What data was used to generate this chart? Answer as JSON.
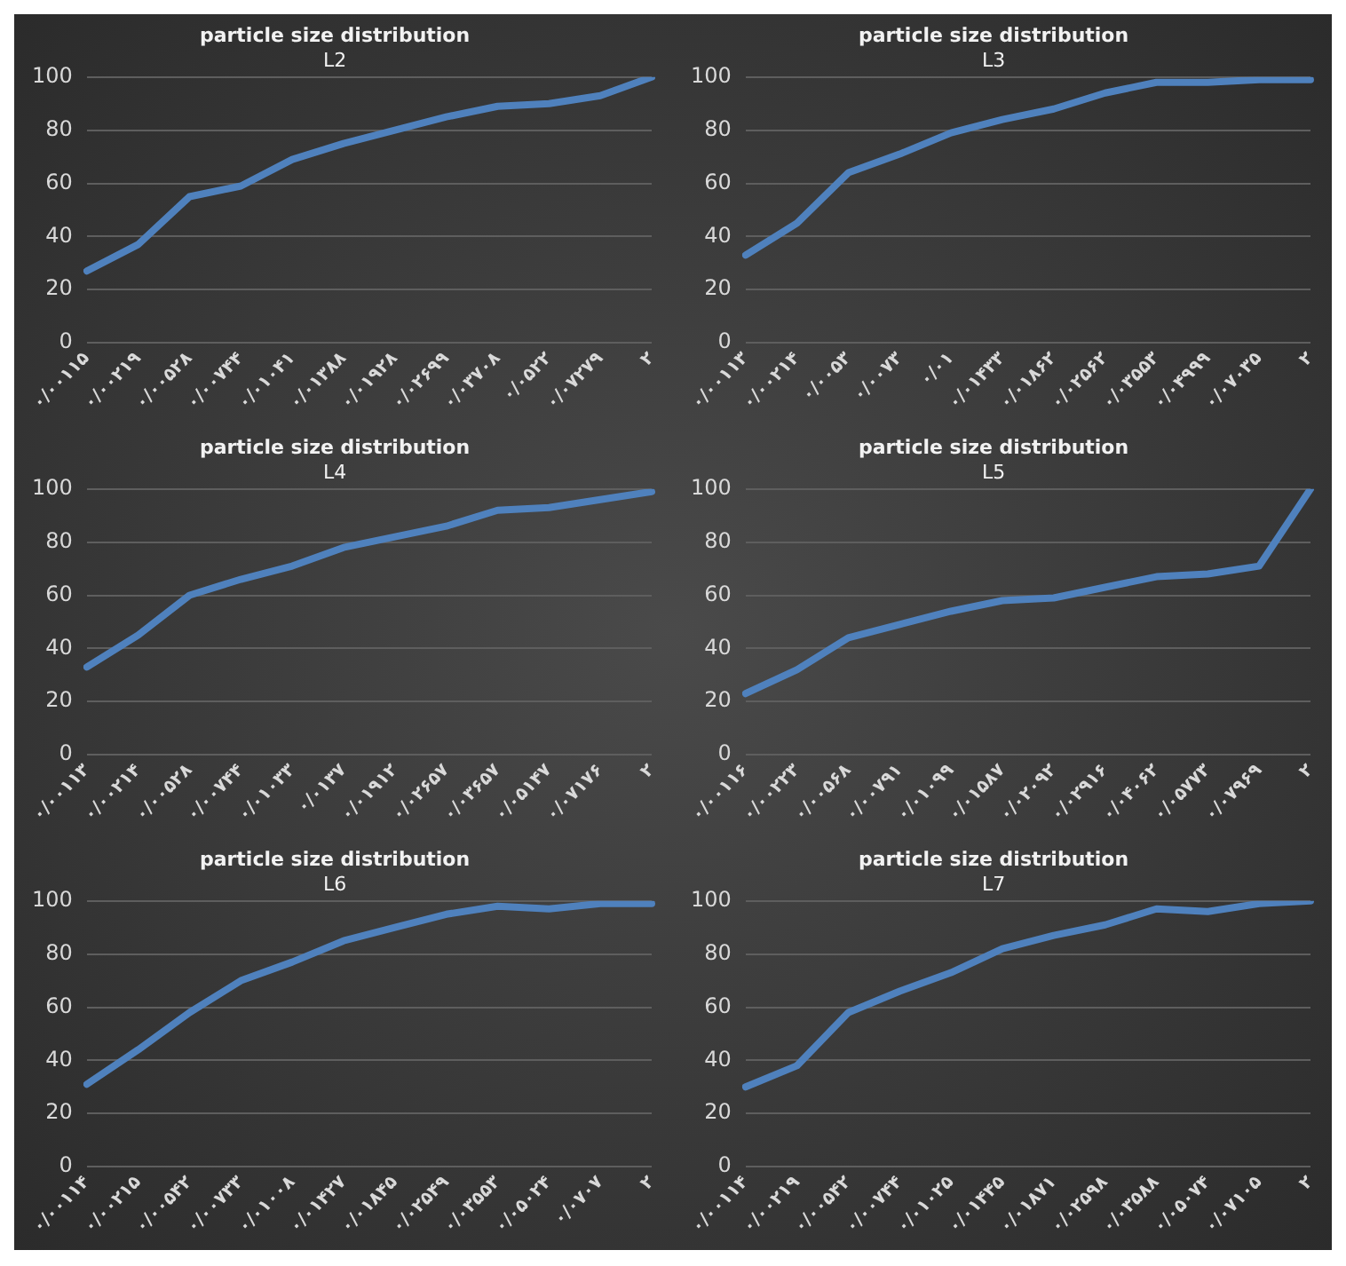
{
  "chart_data": [
    {
      "type": "line",
      "title": "particle size distribution",
      "subtitle": "L2",
      "categories": [
        "۰/۰۰۱۱۵",
        "۰/۰۰۲۱۹",
        "۰/۰۰۵۲۸",
        "۰/۰۰۷۴۴",
        "۰/۰۱۰۴۱",
        "۰/۰۱۳۸۸",
        "۰/۰۱۹۲۸",
        "۰/۰۲۶۹۹",
        "۰/۰۳۷۰۸",
        "۰/۰۵۲۲",
        "۰/۰۷۲۷۹",
        "۲"
      ],
      "series": [
        {
          "color": "#4f81bd",
          "values": [
            27,
            37,
            55,
            59,
            69,
            75,
            80,
            85,
            89,
            90,
            93,
            100
          ]
        }
      ],
      "ylim": [
        0,
        100
      ],
      "yticks": [
        0,
        20,
        40,
        60,
        80,
        100
      ],
      "grid": "y"
    },
    {
      "type": "line",
      "title": "particle size distribution",
      "subtitle": "L3",
      "categories": [
        "۰/۰۰۱۱۳",
        "۰/۰۰۲۱۴",
        "۰/۰۰۵۳",
        "۰/۰۰۷۳",
        "۰/۰۱",
        "۰/۰۱۴۳۳",
        "۰/۰۱۸۶۲",
        "۰/۰۲۵۶۲",
        "۰/۰۳۵۵۳",
        "۰/۰۴۹۹۹",
        "۰/۰۷۰۳۵",
        "۲"
      ],
      "series": [
        {
          "color": "#4f81bd",
          "values": [
            33,
            45,
            64,
            71,
            79,
            84,
            88,
            94,
            98,
            98,
            99,
            99
          ]
        }
      ],
      "ylim": [
        0,
        100
      ],
      "yticks": [
        0,
        20,
        40,
        60,
        80,
        100
      ],
      "grid": "y"
    },
    {
      "type": "line",
      "title": "particle size distribution",
      "subtitle": "L4",
      "categories": [
        "۰/۰۰۱۱۳",
        "۰/۰۰۲۱۴",
        "۰/۰۰۵۲۸",
        "۰/۰۰۷۴۴",
        "۰/۰۱۰۳۳",
        "۰/۰۱۳۷",
        "۰/۰۱۹۱۲",
        "۰/۰۲۶۵۷",
        "۰/۰۳۶۵۷",
        "۰/۰۵۱۴۷",
        "۰/۰۷۱۷۶",
        "۲"
      ],
      "series": [
        {
          "color": "#4f81bd",
          "values": [
            33,
            45,
            60,
            66,
            71,
            78,
            82,
            86,
            92,
            93,
            96,
            99
          ]
        }
      ],
      "ylim": [
        0,
        100
      ],
      "yticks": [
        0,
        20,
        40,
        60,
        80,
        100
      ],
      "grid": "y"
    },
    {
      "type": "line",
      "title": "particle size distribution",
      "subtitle": "L5",
      "categories": [
        "۰/۰۰۱۱۶",
        "۰/۰۰۲۲۳",
        "۰/۰۰۵۶۸",
        "۰/۰۰۷۹۱",
        "۰/۰۱۰۹۹",
        "۰/۰۱۵۸۷",
        "۰/۰۲۰۹۲",
        "۰/۰۲۹۱۶",
        "۰/۰۴۰۶۲",
        "۰/۰۵۷۷۳",
        "۰/۰۷۹۶۹",
        "۲"
      ],
      "series": [
        {
          "color": "#4f81bd",
          "values": [
            23,
            32,
            44,
            49,
            54,
            58,
            59,
            63,
            67,
            68,
            71,
            100
          ]
        }
      ],
      "ylim": [
        0,
        100
      ],
      "yticks": [
        0,
        20,
        40,
        60,
        80,
        100
      ],
      "grid": "y"
    },
    {
      "type": "line",
      "title": "particle size distribution",
      "subtitle": "L6",
      "categories": [
        "۰/۰۰۱۱۴",
        "۰/۰۰۲۱۵",
        "۰/۰۰۵۴۲",
        "۰/۰۰۷۳۳",
        "۰/۰۱۰۰۸",
        "۰/۰۱۴۲۷",
        "۰/۰۱۸۴۵",
        "۰/۰۲۵۴۹",
        "۰/۰۳۵۵۳",
        "۰/۰۵۰۲۴",
        "۰/۰۷۰۷",
        "۲"
      ],
      "series": [
        {
          "color": "#4f81bd",
          "values": [
            31,
            44,
            58,
            70,
            77,
            85,
            90,
            95,
            98,
            97,
            99,
            99
          ]
        }
      ],
      "ylim": [
        0,
        100
      ],
      "yticks": [
        0,
        20,
        40,
        60,
        80,
        100
      ],
      "grid": "y"
    },
    {
      "type": "line",
      "title": "particle size distribution",
      "subtitle": "L7",
      "categories": [
        "۰/۰۰۱۱۴",
        "۰/۰۰۲۱۹",
        "۰/۰۰۵۴۲",
        "۰/۰۰۷۴۴",
        "۰/۰۱۰۲۵",
        "۰/۰۱۴۴۵",
        "۰/۰۱۸۷۱",
        "۰/۰۲۵۹۸",
        "۰/۰۳۵۸۸",
        "۰/۰۵۰۷۴",
        "۰/۰۷۱۰۵",
        "۲"
      ],
      "series": [
        {
          "color": "#4f81bd",
          "values": [
            30,
            38,
            58,
            66,
            73,
            82,
            87,
            91,
            97,
            96,
            99,
            100
          ]
        }
      ],
      "ylim": [
        0,
        100
      ],
      "yticks": [
        0,
        20,
        40,
        60,
        80,
        100
      ],
      "grid": "y"
    }
  ]
}
